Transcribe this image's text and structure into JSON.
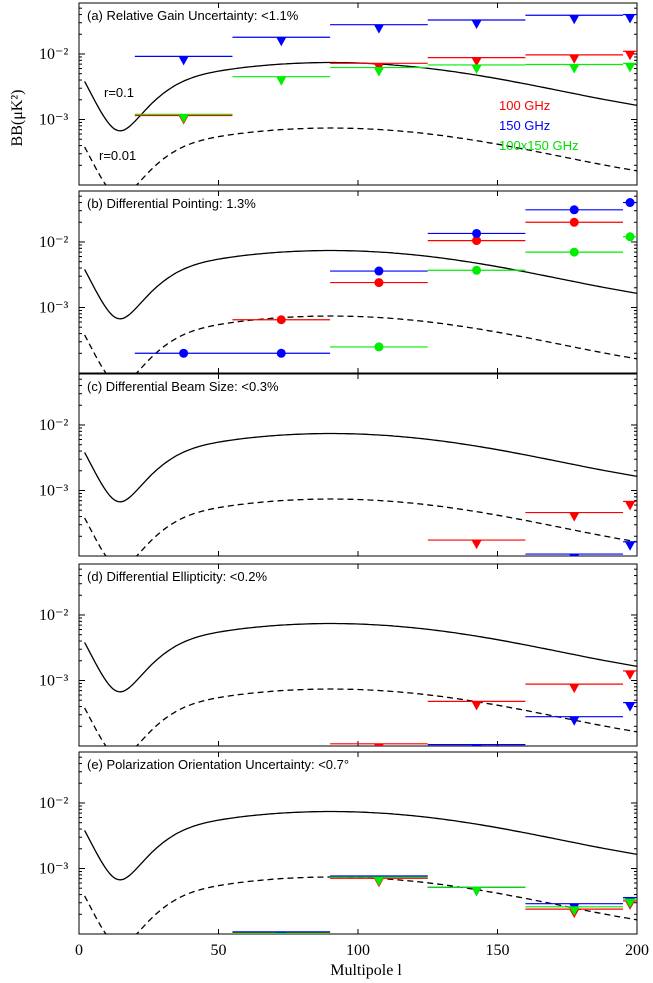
{
  "figure": {
    "y_label": "BB(μK²)",
    "x_label": "Multipole l",
    "x_ticks": [
      "0",
      "50",
      "100",
      "150",
      "200"
    ],
    "y_ticks": [
      "10⁻²",
      "10⁻³"
    ]
  },
  "colors": {
    "f100": "#ff0000",
    "f150": "#0000ff",
    "cross": "#00ee00",
    "model": "#000000"
  },
  "legend": {
    "f100": "100 GHz",
    "f150": "150 GHz",
    "cross": "100x150 GHz"
  },
  "curve_labels": {
    "r01": "r=0.1",
    "r001": "r=0.01"
  },
  "chart_data": [
    {
      "type": "scatter",
      "title": "(a) Relative Gain Uncertainty: <1.1%",
      "xlim": [
        0,
        200
      ],
      "ylog": true,
      "ylim": [
        0.0001,
        0.06
      ],
      "marker": "upper-limit",
      "series": [
        {
          "name": "100 GHz",
          "color": "f100",
          "bins": [
            [
              20,
              55,
              0.00115
            ],
            [
              90,
              125,
              0.0072
            ],
            [
              125,
              160,
              0.0088
            ],
            [
              160,
              195,
              0.0097
            ],
            [
              195,
              200,
              0.011
            ]
          ]
        },
        {
          "name": "150 GHz",
          "color": "f150",
          "bins": [
            [
              20,
              55,
              0.0092
            ],
            [
              55,
              90,
              0.018
            ],
            [
              90,
              125,
              0.028
            ],
            [
              125,
              160,
              0.033
            ],
            [
              160,
              195,
              0.039
            ],
            [
              195,
              200,
              0.04
            ]
          ]
        },
        {
          "name": "100x150 GHz",
          "color": "cross",
          "bins": [
            [
              20,
              55,
              0.0012
            ],
            [
              55,
              90,
              0.0045
            ],
            [
              90,
              125,
              0.0062
            ],
            [
              125,
              160,
              0.0068
            ],
            [
              160,
              195,
              0.0069
            ],
            [
              195,
              200,
              0.0072
            ]
          ]
        }
      ]
    },
    {
      "type": "scatter",
      "title": "(b) Differential Pointing: 1.3%",
      "xlim": [
        0,
        200
      ],
      "ylog": true,
      "ylim": [
        0.0001,
        0.06
      ],
      "marker": "point",
      "series": [
        {
          "name": "100 GHz",
          "color": "f100",
          "bins": [
            [
              55,
              90,
              0.00065
            ],
            [
              90,
              125,
              0.0024
            ],
            [
              125,
              160,
              0.0105
            ],
            [
              160,
              195,
              0.02
            ]
          ]
        },
        {
          "name": "150 GHz",
          "color": "f150",
          "bins": [
            [
              20,
              55,
              0.0002
            ],
            [
              55,
              90,
              0.0002
            ],
            [
              90,
              125,
              0.0036
            ],
            [
              125,
              160,
              0.0135
            ],
            [
              160,
              195,
              0.031
            ],
            [
              195,
              200,
              0.04
            ]
          ]
        },
        {
          "name": "100x150 GHz",
          "color": "cross",
          "bins": [
            [
              90,
              125,
              0.00025
            ],
            [
              125,
              160,
              0.0037
            ],
            [
              160,
              195,
              0.007
            ],
            [
              195,
              200,
              0.012
            ]
          ]
        }
      ]
    },
    {
      "type": "scatter",
      "title": "(c) Differential Beam Size: <0.3%",
      "xlim": [
        0,
        200
      ],
      "ylog": true,
      "ylim": [
        0.0001,
        0.06
      ],
      "marker": "upper-limit",
      "series": [
        {
          "name": "100 GHz",
          "color": "f100",
          "bins": [
            [
              125,
              160,
              0.000175
            ],
            [
              160,
              195,
              0.00046
            ],
            [
              195,
              200,
              0.00068
            ]
          ]
        },
        {
          "name": "150 GHz",
          "color": "f150",
          "bins": [
            [
              160,
              195,
              0.000107
            ],
            [
              195,
              200,
              0.000165
            ]
          ]
        }
      ]
    },
    {
      "type": "scatter",
      "title": "(d) Differential Ellipticity: <0.2%",
      "xlim": [
        0,
        200
      ],
      "ylog": true,
      "ylim": [
        0.0001,
        0.06
      ],
      "marker": "upper-limit",
      "series": [
        {
          "name": "100 GHz",
          "color": "f100",
          "bins": [
            [
              90,
              125,
              0.000108
            ],
            [
              125,
              160,
              0.00048
            ],
            [
              160,
              195,
              0.00088
            ],
            [
              195,
              200,
              0.0014
            ]
          ]
        },
        {
          "name": "150 GHz",
          "color": "f150",
          "bins": [
            [
              125,
              160,
              0.000105
            ],
            [
              160,
              195,
              0.00028
            ],
            [
              195,
              200,
              0.00046
            ]
          ]
        }
      ]
    },
    {
      "type": "scatter",
      "title": "(e) Polarization Orientation Uncertainty: <0.7°",
      "xlim": [
        0,
        200
      ],
      "ylog": true,
      "ylim": [
        0.0001,
        0.06
      ],
      "marker": "upper-limit",
      "series": [
        {
          "name": "100 GHz",
          "color": "f100",
          "bins": [
            [
              55,
              90,
              0.000105
            ],
            [
              90,
              125,
              0.00071
            ],
            [
              125,
              160,
              0.00052
            ],
            [
              160,
              195,
              0.00024
            ],
            [
              195,
              200,
              0.00032
            ]
          ]
        },
        {
          "name": "150 GHz",
          "color": "f150",
          "bins": [
            [
              55,
              90,
              0.000108
            ],
            [
              90,
              125,
              0.00077
            ],
            [
              125,
              160,
              0.00052
            ],
            [
              160,
              195,
              0.00029
            ],
            [
              195,
              200,
              0.00036
            ]
          ]
        },
        {
          "name": "100x150 GHz",
          "color": "cross",
          "bins": [
            [
              55,
              90,
              0.000102
            ],
            [
              90,
              125,
              0.00074
            ],
            [
              125,
              160,
              0.00052
            ],
            [
              160,
              195,
              0.00026
            ],
            [
              195,
              200,
              0.00034
            ]
          ]
        }
      ]
    }
  ]
}
